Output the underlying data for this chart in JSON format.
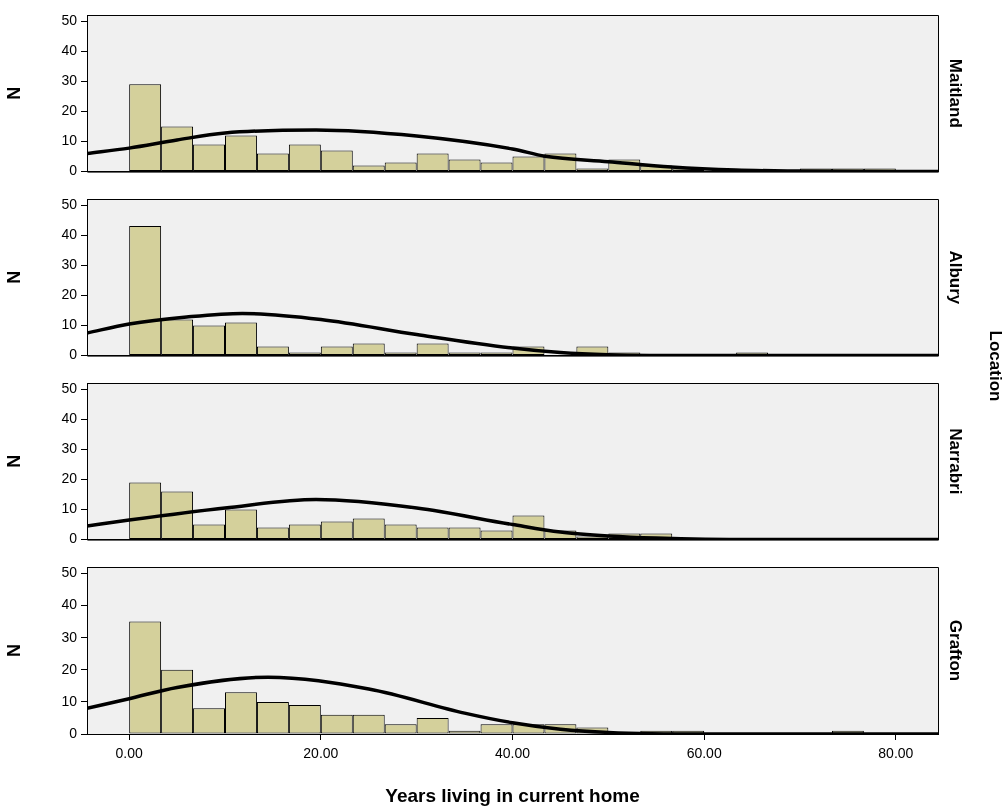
{
  "chart_data": [
    {
      "type": "histogram",
      "ylabel": "N",
      "y2label": "Maitland",
      "tick_labels": "y",
      "bins": [
        0,
        3.333,
        6.667,
        10,
        13.333,
        16.667,
        20,
        23.333,
        26.667,
        30,
        33.333,
        36.667,
        40,
        43.333,
        46.667,
        50,
        53.333,
        56.667,
        60,
        63.333,
        66.667,
        70,
        73.333,
        76.667,
        80
      ],
      "series": [
        {
          "color": "#d4d09b",
          "values": [
            29,
            15,
            9,
            12,
            6,
            9,
            7,
            2,
            3,
            6,
            4,
            3,
            5,
            6,
            1,
            4,
            2,
            1,
            0,
            0,
            0,
            1,
            1,
            1
          ]
        },
        {
          "type": "line",
          "color": "#000000",
          "x": [
            -4.4,
            0,
            5,
            10,
            19.5,
            30,
            40,
            43.4,
            50,
            56.6,
            63.3,
            70,
            84.4
          ],
          "values": [
            6,
            7.8,
            10.5,
            12.8,
            13.8,
            11.8,
            7.5,
            5.1,
            3.3,
            1.5,
            0.5,
            0.2,
            0
          ]
        }
      ],
      "xlim": [
        -4.4,
        84.4
      ],
      "ylim": [
        0,
        52
      ],
      "yticks": [
        0,
        10,
        20,
        30,
        40,
        50
      ]
    },
    {
      "type": "histogram",
      "ylabel": "N",
      "y2label": "Albury",
      "tick_labels": "y",
      "annotations": [
        "Location"
      ],
      "bins": [
        0,
        3.333,
        6.667,
        10,
        13.333,
        16.667,
        20,
        23.333,
        26.667,
        30,
        33.333,
        36.667,
        40,
        43.333,
        46.667,
        50,
        53.333,
        56.667,
        60,
        63.333,
        66.667,
        70,
        73.333,
        76.667,
        80
      ],
      "series": [
        {
          "color": "#d4d09b",
          "values": [
            43,
            12,
            10,
            11,
            3,
            1,
            3,
            4,
            1,
            4,
            1,
            1,
            3,
            0,
            3,
            1,
            0,
            0,
            0,
            1,
            0,
            0,
            0,
            0
          ]
        },
        {
          "type": "line",
          "color": "#000000",
          "x": [
            -4.4,
            0,
            6,
            11.8,
            20,
            30,
            40,
            45,
            50,
            60,
            84.4
          ],
          "values": [
            7.5,
            10.5,
            12.8,
            14,
            12,
            7,
            2.5,
            1,
            0.3,
            0,
            0
          ]
        }
      ],
      "xlim": [
        -4.4,
        84.4
      ],
      "ylim": [
        0,
        52
      ],
      "yticks": [
        0,
        10,
        20,
        30,
        40,
        50
      ]
    },
    {
      "type": "histogram",
      "ylabel": "N",
      "y2label": "Narrabri",
      "tick_labels": "y",
      "bins": [
        0,
        3.333,
        6.667,
        10,
        13.333,
        16.667,
        20,
        23.333,
        26.667,
        30,
        33.333,
        36.667,
        40,
        43.333,
        46.667,
        50,
        53.333,
        56.667,
        60,
        63.333,
        66.667,
        70,
        73.333,
        76.667,
        80
      ],
      "series": [
        {
          "color": "#d4d09b",
          "values": [
            19,
            16,
            5,
            10,
            4,
            5,
            6,
            7,
            5,
            4,
            4,
            3,
            8,
            3,
            1,
            2,
            2,
            0,
            0,
            0,
            0,
            0,
            0,
            0
          ]
        },
        {
          "type": "line",
          "color": "#000000",
          "x": [
            -4.4,
            0,
            10,
            19.5,
            30,
            40,
            45,
            50,
            55,
            65,
            84.4
          ],
          "values": [
            4.5,
            6.5,
            10.5,
            13.3,
            10.5,
            5,
            2.5,
            1.2,
            0.5,
            0,
            0
          ]
        }
      ],
      "xlim": [
        -4.4,
        84.4
      ],
      "ylim": [
        0,
        52
      ],
      "yticks": [
        0,
        10,
        20,
        30,
        40,
        50
      ]
    },
    {
      "type": "histogram",
      "ylabel": "N",
      "y2label": "Grafton",
      "xlabel": "Years living in current home",
      "bins": [
        0,
        3.333,
        6.667,
        10,
        13.333,
        16.667,
        20,
        23.333,
        26.667,
        30,
        33.333,
        36.667,
        40,
        43.333,
        46.667,
        50,
        53.333,
        56.667,
        60,
        63.333,
        66.667,
        70,
        73.333,
        76.667,
        80
      ],
      "series": [
        {
          "color": "#d4d09b",
          "values": [
            35,
            20,
            8,
            13,
            10,
            9,
            6,
            6,
            3,
            5,
            1,
            3,
            3,
            3,
            2,
            0,
            1,
            1,
            0,
            0,
            0,
            0,
            1,
            0
          ]
        },
        {
          "type": "line",
          "color": "#000000",
          "x": [
            -4.4,
            0,
            5,
            14.5,
            25,
            35,
            40,
            45,
            50,
            60,
            84.4
          ],
          "values": [
            8,
            11,
            14.5,
            17.7,
            14,
            6.5,
            3.5,
            1.5,
            0.5,
            0,
            0
          ]
        }
      ],
      "xlim": [
        -4.4,
        84.4
      ],
      "ylim": [
        0,
        52
      ],
      "yticks": [
        0,
        10,
        20,
        30,
        40,
        50
      ],
      "xticks": [
        {
          "value": 0,
          "label": "0.00"
        },
        {
          "value": 20,
          "label": "20.00"
        },
        {
          "value": 40,
          "label": "40.00"
        },
        {
          "value": 60,
          "label": "60.00"
        },
        {
          "value": 80,
          "label": "80.00"
        }
      ]
    }
  ]
}
